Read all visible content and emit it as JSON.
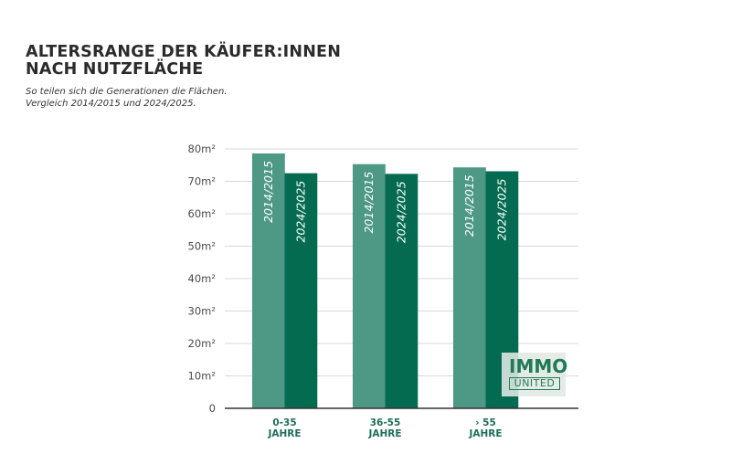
{
  "header": {
    "title_line1": "ALTERSRANGE DER KÄUFER:INNEN",
    "title_line2": "NACH NUTZFLÄCHE",
    "subtitle_line1": "So teilen sich die Generationen die Flächen.",
    "subtitle_line2": "Vergleich 2014/2015 und 2024/2025."
  },
  "logo": {
    "top": "IMMO",
    "bottom": "UNITED"
  },
  "colors": {
    "series_2014": "#4e9886",
    "series_2024": "#046b51",
    "category_text": "#1f6e57",
    "grid": "#d9d9d9",
    "baseline": "#333333"
  },
  "chart_data": {
    "type": "bar",
    "title": "ALTERSRANGE DER KÄUFER:INNEN NACH NUTZFLÄCHE",
    "subtitle": "So teilen sich die Generationen die Flächen. Vergleich 2014/2015 und 2024/2025.",
    "xlabel": "",
    "ylabel": "",
    "categories": [
      [
        "0-35",
        "JAHRE"
      ],
      [
        "36-55",
        "JAHRE"
      ],
      [
        "› 55",
        "JAHRE"
      ]
    ],
    "series": [
      {
        "name": "2014/2015",
        "values": [
          78.6,
          75.3,
          74.3
        ]
      },
      {
        "name": "2024/2025",
        "values": [
          72.5,
          72.3,
          73.1
        ]
      }
    ],
    "ylim": [
      0,
      80
    ],
    "yticks": [
      0,
      10,
      20,
      30,
      40,
      50,
      60,
      70,
      80
    ],
    "ytick_labels": [
      "0",
      "10m²",
      "20m²",
      "30m²",
      "40m²",
      "50m²",
      "60m²",
      "70m²",
      "80m²"
    ],
    "grid": true,
    "legend": "none (series labels written inside bars)"
  }
}
